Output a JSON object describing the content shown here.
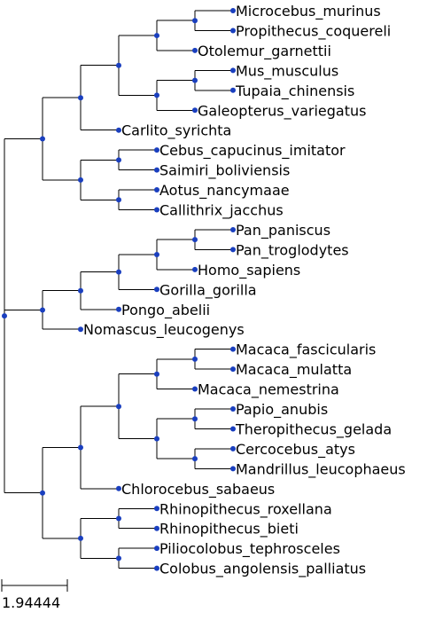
{
  "tree": {
    "node_color": "#1a3fbf",
    "branch_color": "#000000",
    "scale_bar_label": "1.94444",
    "root": {
      "children": [
        {
          "children": [
            {
              "children": [
                {
                  "children": [
                    {
                      "children": [
                        {
                          "children": [
                            {
                              "name": "Microcebus_murinus"
                            },
                            {
                              "name": "Propithecus_coquereli"
                            }
                          ]
                        },
                        {
                          "name": "Otolemur_garnettii"
                        }
                      ]
                    },
                    {
                      "children": [
                        {
                          "children": [
                            {
                              "name": "Mus_musculus"
                            },
                            {
                              "name": "Tupaia_chinensis"
                            }
                          ]
                        },
                        {
                          "name": "Galeopterus_variegatus"
                        }
                      ]
                    }
                  ]
                },
                {
                  "name": "Carlito_syrichta"
                }
              ]
            },
            {
              "children": [
                {
                  "children": [
                    {
                      "name": "Cebus_capucinus_imitator"
                    },
                    {
                      "name": "Saimiri_boliviensis"
                    }
                  ]
                },
                {
                  "children": [
                    {
                      "name": "Aotus_nancymaae"
                    },
                    {
                      "name": "Callithrix_jacchus"
                    }
                  ]
                }
              ]
            }
          ]
        },
        {
          "children": [
            {
              "children": [
                {
                  "children": [
                    {
                      "children": [
                        {
                          "children": [
                            {
                              "name": "Pan_paniscus"
                            },
                            {
                              "name": "Pan_troglodytes"
                            }
                          ]
                        },
                        {
                          "name": "Homo_sapiens"
                        }
                      ]
                    },
                    {
                      "name": "Gorilla_gorilla"
                    }
                  ]
                },
                {
                  "name": "Pongo_abelii"
                }
              ]
            },
            {
              "name": "Nomascus_leucogenys"
            }
          ]
        },
        {
          "children": [
            {
              "children": [
                {
                  "children": [
                    {
                      "children": [
                        {
                          "children": [
                            {
                              "name": "Macaca_fascicularis"
                            },
                            {
                              "name": "Macaca_mulatta"
                            }
                          ]
                        },
                        {
                          "name": "Macaca_nemestrina"
                        }
                      ]
                    },
                    {
                      "children": [
                        {
                          "children": [
                            {
                              "name": "Papio_anubis"
                            },
                            {
                              "name": "Theropithecus_gelada"
                            }
                          ]
                        },
                        {
                          "children": [
                            {
                              "name": "Cercocebus_atys"
                            },
                            {
                              "name": "Mandrillus_leucophaeus"
                            }
                          ]
                        }
                      ]
                    }
                  ]
                },
                {
                  "name": "Chlorocebus_sabaeus"
                }
              ]
            },
            {
              "children": [
                {
                  "children": [
                    {
                      "name": "Rhinopithecus_roxellana"
                    },
                    {
                      "name": "Rhinopithecus_bieti"
                    }
                  ]
                },
                {
                  "children": [
                    {
                      "name": "Piliocolobus_tephrosceles"
                    },
                    {
                      "name": "Colobus_angolensis_palliatus"
                    }
                  ]
                }
              ]
            }
          ]
        }
      ]
    }
  }
}
